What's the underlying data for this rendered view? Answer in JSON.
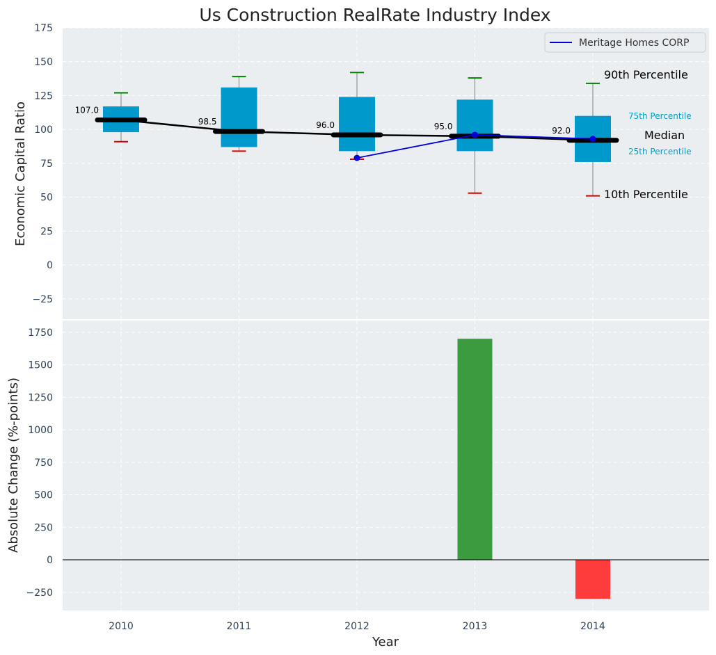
{
  "chart_data": [
    {
      "type": "box",
      "title": "Us Construction RealRate Industry Index",
      "xlabel": "",
      "ylabel": "Economic Capital Ratio",
      "ylim": [
        -40,
        175
      ],
      "yticks": [
        -25,
        0,
        25,
        50,
        75,
        100,
        125,
        150,
        175
      ],
      "grid": true,
      "legend_position": "top-right",
      "categories": [
        "2010",
        "2011",
        "2012",
        "2013",
        "2014"
      ],
      "boxes": [
        {
          "year": "2010",
          "p10": 91,
          "p25": 98,
          "median": 107.0,
          "p75": 117,
          "p90": 127,
          "median_label": "107.0"
        },
        {
          "year": "2011",
          "p10": 84,
          "p25": 87,
          "median": 98.5,
          "p75": 131,
          "p90": 139,
          "median_label": "98.5"
        },
        {
          "year": "2012",
          "p10": 78,
          "p25": 84,
          "median": 96.0,
          "p75": 124,
          "p90": 142,
          "median_label": "96.0"
        },
        {
          "year": "2013",
          "p10": 53,
          "p25": 84,
          "median": 95.0,
          "p75": 122,
          "p90": 138,
          "median_label": "95.0"
        },
        {
          "year": "2014",
          "p10": 51,
          "p25": 76,
          "median": 92.0,
          "p75": 110,
          "p90": 134,
          "median_label": "92.0"
        }
      ],
      "series": [
        {
          "name": "Meritage Homes CORP",
          "color": "#0000dd",
          "x": [
            "2012",
            "2013",
            "2014"
          ],
          "values": [
            79,
            96,
            93
          ]
        }
      ],
      "annotations": {
        "p90": "90th Percentile",
        "p75": "75th Percentile",
        "median": "Median",
        "p25": "25th Percentile",
        "p10": "10th Percentile"
      },
      "colors": {
        "box": "#0099cc",
        "median_line": "#000000",
        "p90_cap": "#008000",
        "p10_cap": "#dd0000",
        "background": "#eaeef0"
      }
    },
    {
      "type": "bar",
      "title": "",
      "xlabel": "Year",
      "ylabel": "Absolute Change (%-points)",
      "ylim": [
        -390,
        1840
      ],
      "yticks": [
        -250,
        0,
        250,
        500,
        750,
        1000,
        1250,
        1500,
        1750
      ],
      "grid": true,
      "categories": [
        "2010",
        "2011",
        "2012",
        "2013",
        "2014"
      ],
      "values": [
        0,
        0,
        0,
        1700,
        -300
      ],
      "colors": {
        "positive": "#3a9c3e",
        "negative": "#ff3c3c"
      }
    }
  ]
}
